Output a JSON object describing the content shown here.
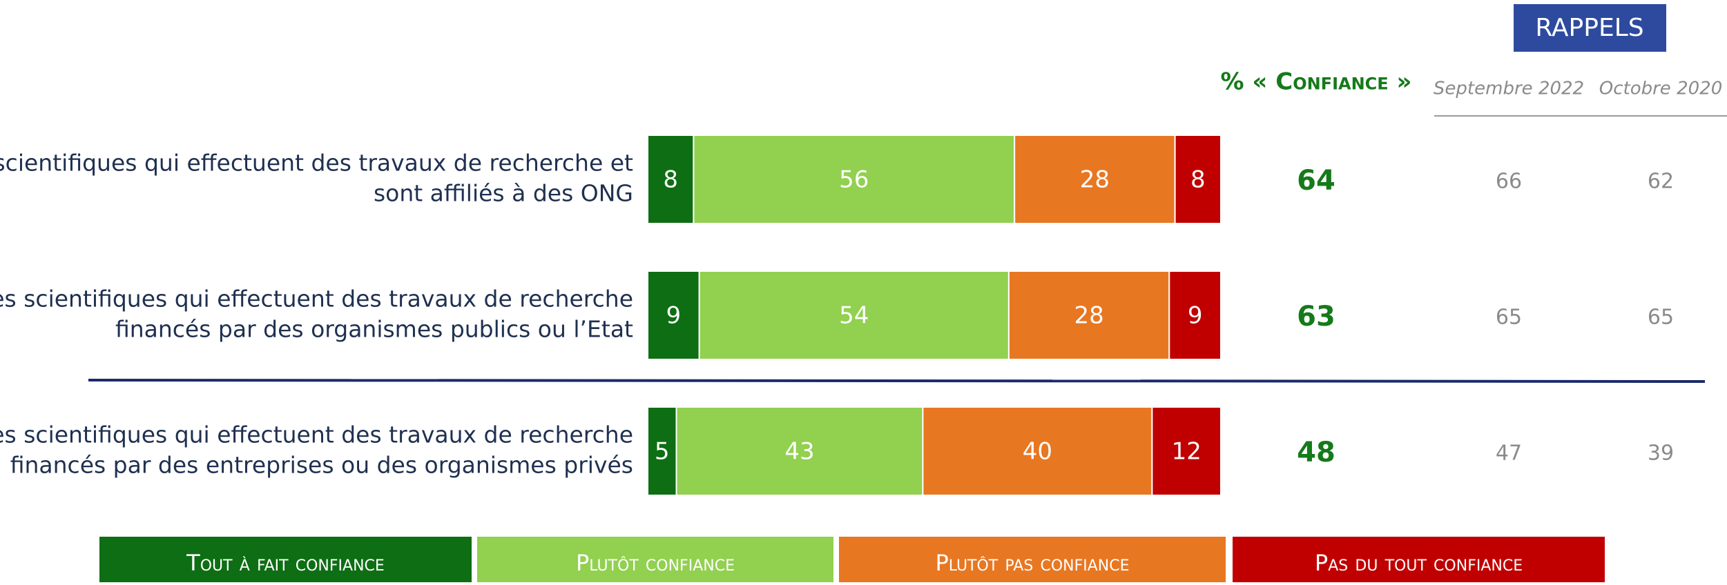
{
  "chart_data": {
    "type": "bar",
    "orientation": "horizontal",
    "stacked": true,
    "categories": [
      [
        "Des scientifiques qui effectuent des travaux de recherche et",
        "sont affiliés à des ONG"
      ],
      [
        "Les scientifiques qui effectuent des travaux de recherche",
        "financés par des organismes publics ou l’Etat"
      ],
      [
        "Les scientifiques qui effectuent des travaux de recherche",
        "financés par des entreprises ou des organismes privés"
      ]
    ],
    "series": [
      {
        "name": "Tout à fait confiance",
        "color": "#0e6e14",
        "values": [
          8,
          9,
          5
        ]
      },
      {
        "name": "Plutôt confiance",
        "color": "#92d050",
        "values": [
          56,
          54,
          43
        ]
      },
      {
        "name": "Plutôt pas confiance",
        "color": "#e87722",
        "values": [
          28,
          28,
          40
        ]
      },
      {
        "name": "Pas du tout confiance",
        "color": "#c00000",
        "values": [
          8,
          9,
          12
        ]
      }
    ],
    "xlim": [
      0,
      100
    ],
    "confidence": {
      "title": "% « Confiance »",
      "values": [
        64,
        63,
        48
      ]
    },
    "reminders": {
      "title": "RAPPELS",
      "columns": [
        {
          "name": "Septembre 2022",
          "values": [
            66,
            65,
            47
          ]
        },
        {
          "name": "Octobre 2020",
          "values": [
            62,
            65,
            39
          ]
        }
      ]
    }
  }
}
